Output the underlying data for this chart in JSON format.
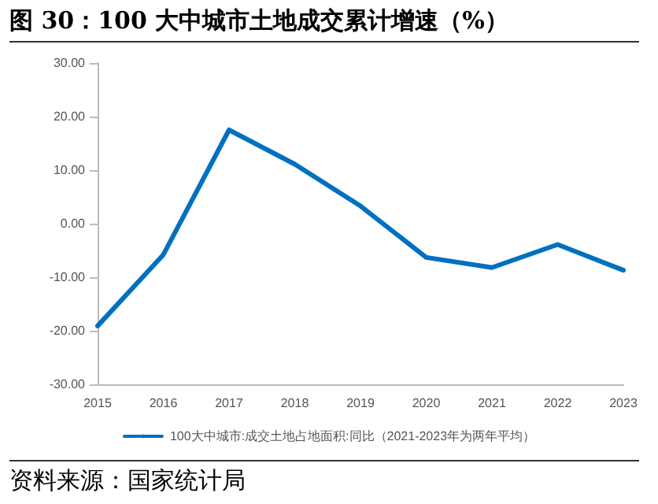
{
  "chart_data": {
    "type": "line",
    "title": "图 30：100 大中城市土地成交累计增速（%）",
    "categories": [
      "2015",
      "2016",
      "2017",
      "2018",
      "2019",
      "2020",
      "2021",
      "2022",
      "2023"
    ],
    "series": [
      {
        "name": "100大中城市:成交土地占地面积:同比（2021-2023年为两年平均）",
        "color": "#0070c0",
        "values": [
          -19.1,
          -5.8,
          17.5,
          11.1,
          3.3,
          -6.3,
          -8.2,
          -3.9,
          -8.7
        ]
      }
    ],
    "ylim": [
      -30,
      30
    ],
    "yticks": [
      {
        "value": -30,
        "label": "-30.00"
      },
      {
        "value": -20,
        "label": "-20.00"
      },
      {
        "value": -10,
        "label": "-10.00"
      },
      {
        "value": 0,
        "label": "0.00"
      },
      {
        "value": 10,
        "label": "10.00"
      },
      {
        "value": 20,
        "label": "20.00"
      },
      {
        "value": 30,
        "label": "30.00"
      }
    ],
    "grid": false,
    "legend": "bottom",
    "marker": "none",
    "line_style": "solid",
    "annotations": [
      "资料来源：国家统计局"
    ]
  }
}
